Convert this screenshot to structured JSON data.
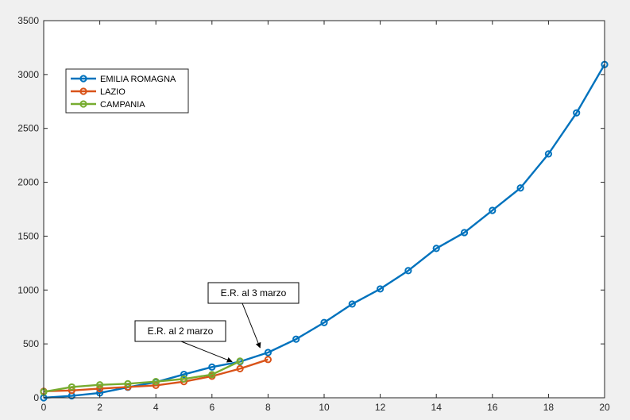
{
  "chart_data": {
    "type": "line",
    "title": "",
    "xlabel": "",
    "ylabel": "",
    "xlim": [
      0,
      20
    ],
    "ylim": [
      0,
      3500
    ],
    "xticks": [
      0,
      2,
      4,
      6,
      8,
      10,
      12,
      14,
      16,
      18,
      20
    ],
    "yticks": [
      0,
      500,
      1000,
      1500,
      2000,
      2500,
      3000,
      3500
    ],
    "grid": false,
    "legend_position": "top-left",
    "series": [
      {
        "name": "EMILIA ROMAGNA",
        "color": "#0072bd",
        "x": [
          0,
          1,
          2,
          3,
          4,
          5,
          6,
          7,
          8,
          9,
          10,
          11,
          12,
          13,
          14,
          15,
          16,
          17,
          18,
          19,
          20
        ],
        "values": [
          0,
          18,
          45,
          97,
          145,
          217,
          285,
          335,
          420,
          544,
          698,
          870,
          1010,
          1180,
          1386,
          1533,
          1739,
          1947,
          2263,
          2644,
          3093
        ]
      },
      {
        "name": "LAZIO",
        "color": "#d95319",
        "x": [
          0,
          1,
          2,
          3,
          4,
          5,
          6,
          7,
          8
        ],
        "values": [
          60,
          68,
          85,
          100,
          115,
          150,
          200,
          270,
          355
        ]
      },
      {
        "name": "CAMPANIA",
        "color": "#77ac30",
        "x": [
          0,
          1,
          2,
          3,
          4,
          5,
          6,
          7
        ],
        "values": [
          55,
          100,
          120,
          130,
          150,
          175,
          215,
          340
        ]
      }
    ],
    "annotations": [
      {
        "text": "E.R. al 3 marzo",
        "points_to": {
          "x": 8,
          "y": 420
        }
      },
      {
        "text": "E.R. al 2 marzo",
        "points_to": {
          "x": 7,
          "y": 335
        }
      }
    ]
  }
}
